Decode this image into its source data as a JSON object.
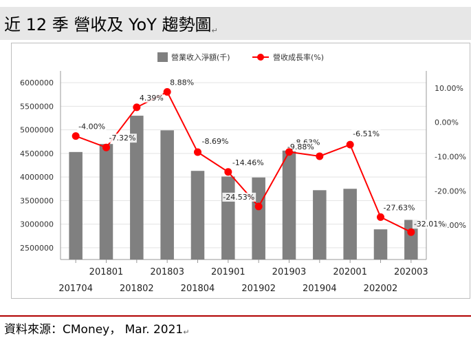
{
  "title": "近 12 季 營收及 YoY 趨勢圖",
  "source": "資料來源：CMoney， Mar. 2021",
  "chart_data": {
    "type": "bar+line",
    "categories": [
      "201704",
      "201801",
      "201802",
      "201803",
      "201804",
      "201901",
      "201902",
      "201903",
      "201904",
      "202001",
      "202002",
      "202003"
    ],
    "series": [
      {
        "name": "營業收入淨額(千)",
        "type": "bar",
        "axis": "left",
        "color": "#808080",
        "values": [
          4530000,
          4700000,
          5300000,
          4990000,
          4130000,
          4010000,
          3990000,
          4560000,
          3720000,
          3750000,
          2890000,
          3090000
        ]
      },
      {
        "name": "營收成長率(%)",
        "type": "line",
        "axis": "right",
        "color": "#ff0000",
        "values": [
          -4.0,
          -7.32,
          4.39,
          8.88,
          -8.69,
          -14.46,
          -24.53,
          -8.63,
          -9.88,
          -6.51,
          -27.63,
          -32.01
        ],
        "labels": [
          "-4.00%",
          "-7.32%",
          "4.39%",
          "8.88%",
          "-8.69%",
          "-14.46%",
          "-24.53%",
          "-8.63%",
          "-9.88%",
          "-6.51%",
          "-27.63%",
          "-32.01%"
        ]
      }
    ],
    "y_left": {
      "ylim": [
        2250000,
        6250000
      ],
      "ticks": [
        2500000,
        3000000,
        3500000,
        4000000,
        4500000,
        5000000,
        5500000,
        6000000
      ],
      "tick_labels": [
        "2500000",
        "3000000",
        "3500000",
        "4000000",
        "4500000",
        "5000000",
        "5500000",
        "6000000"
      ]
    },
    "y_right": {
      "ylim": [
        -40,
        15
      ],
      "ticks": [
        10,
        0,
        -10,
        -20,
        -30
      ],
      "tick_labels": [
        "10.00%",
        "0.00%",
        "-10.00%",
        "-20.00%",
        "-30.00%"
      ]
    },
    "legend_position": "top-center",
    "grid": "horizontal"
  }
}
